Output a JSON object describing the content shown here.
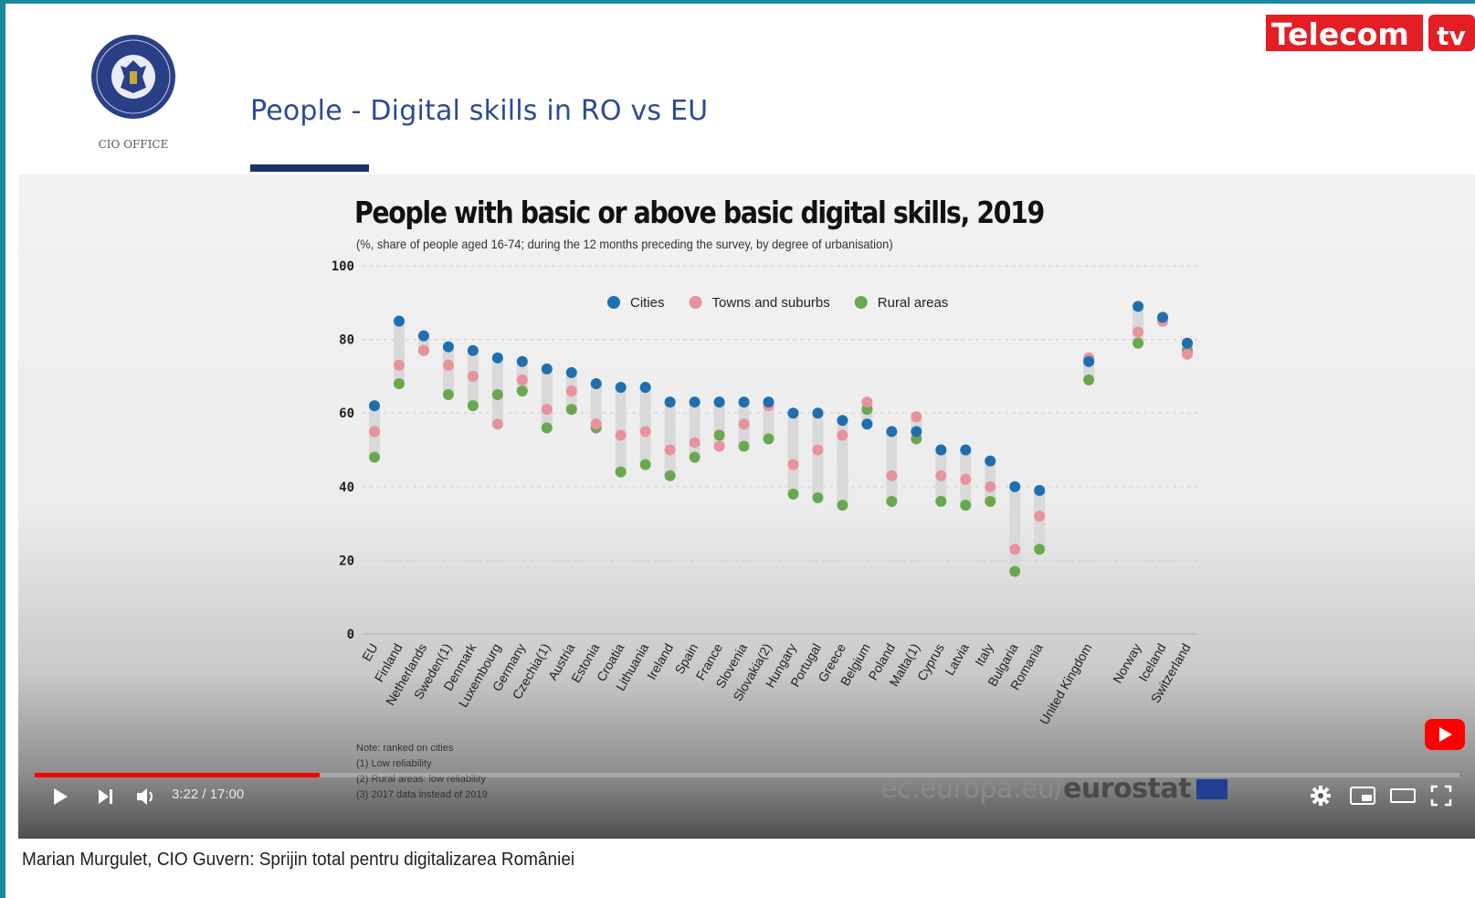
{
  "slide": {
    "logo_text": "GUVERNUL ROMÂNIEI",
    "logo_caption": "CIO OFFICE",
    "title": "People - Digital skills in RO vs EU",
    "channel_logo": "Telecom",
    "channel_logo_suffix": "tv"
  },
  "video": {
    "chart_title": "People with basic or above basic digital skills, 2019",
    "chart_subtitle": "(%, share of people aged 16-74; during the 12 months preceding the survey, by degree of urbanisation)",
    "notes": [
      "Note: ranked on cities",
      "(1) Low reliability",
      "(2) Rural areas: low reliability",
      "(3) 2017 data instead of 2019"
    ],
    "source_plain": "ec.europa.eu/",
    "source_bold": "eurostat",
    "time": "3:22 / 17:00",
    "progress_fraction": 0.2
  },
  "caption": "Marian Murgulet, CIO Guvern: Sprijin total pentru digitalizarea României",
  "icons": {
    "play": "play-icon",
    "next": "next-icon",
    "volume": "volume-icon",
    "settings": "gear-icon",
    "miniplayer": "miniplayer-icon",
    "theater": "theater-icon",
    "fullscreen": "fullscreen-icon"
  },
  "colors": {
    "cities": "#1f6fb0",
    "towns": "#e8929e",
    "rural": "#6aa84f",
    "title_blue": "#2c4a92",
    "progress": "#ff0000"
  },
  "chart_data": {
    "type": "scatter",
    "title": "People with basic or above basic digital skills, 2019",
    "subtitle": "(%, share of people aged 16-74; during the 12 months preceding the survey, by degree of urbanisation)",
    "ylim": [
      0,
      100
    ],
    "yticks": [
      0,
      20,
      40,
      60,
      80,
      100
    ],
    "grid": true,
    "legend_placement": "top-center",
    "categories": [
      "EU",
      "Finland",
      "Netherlands",
      "Sweden",
      "Denmark",
      "Luxembourg",
      "Germany",
      "Czechia",
      "Austria",
      "Estonia",
      "Croatia",
      "Lithuania",
      "Ireland",
      "Spain",
      "France",
      "Slovenia",
      "Slovakia",
      "Hungary",
      "Portugal",
      "Greece",
      "Belgium",
      "Poland",
      "Malta",
      "Cyprus",
      "Latvia",
      "Italy",
      "Bulgaria",
      "Romania",
      "",
      "United Kingdom",
      "",
      "Norway",
      "Iceland",
      "Switzerland"
    ],
    "category_labels": [
      "EU",
      "Finland",
      "Netherlands",
      "Sweden(1)",
      "Denmark",
      "Luxembourg",
      "Germany",
      "Czechia(1)",
      "Austria",
      "Estonia",
      "Croatia",
      "Lithuania",
      "Ireland",
      "Spain",
      "France",
      "Slovenia",
      "Slovakia(2)",
      "Hungary",
      "Portugal",
      "Greece",
      "Belgium",
      "Poland",
      "Malta(1)",
      "Cyprus",
      "Latvia",
      "Italy",
      "Bulgaria",
      "Romania",
      "",
      "United Kingdom",
      "",
      "Norway",
      "Iceland",
      "Switzerland"
    ],
    "series": [
      {
        "name": "Cities",
        "values": [
          62,
          85,
          81,
          78,
          77,
          75,
          74,
          72,
          71,
          68,
          67,
          67,
          63,
          63,
          63,
          63,
          63,
          60,
          60,
          58,
          57,
          55,
          55,
          50,
          50,
          47,
          40,
          39,
          null,
          74,
          null,
          89,
          86,
          79
        ]
      },
      {
        "name": "Towns and suburbs",
        "values": [
          55,
          73,
          77,
          73,
          70,
          57,
          69,
          61,
          66,
          57,
          54,
          55,
          50,
          52,
          51,
          57,
          62,
          46,
          50,
          54,
          63,
          43,
          59,
          43,
          42,
          40,
          23,
          32,
          null,
          75,
          null,
          82,
          85,
          76
        ]
      },
      {
        "name": "Rural areas",
        "values": [
          48,
          68,
          77,
          65,
          62,
          65,
          66,
          56,
          61,
          56,
          44,
          46,
          43,
          48,
          54,
          51,
          53,
          38,
          37,
          35,
          61,
          36,
          53,
          36,
          35,
          36,
          17,
          23,
          null,
          69,
          null,
          79,
          85,
          77
        ]
      }
    ]
  }
}
